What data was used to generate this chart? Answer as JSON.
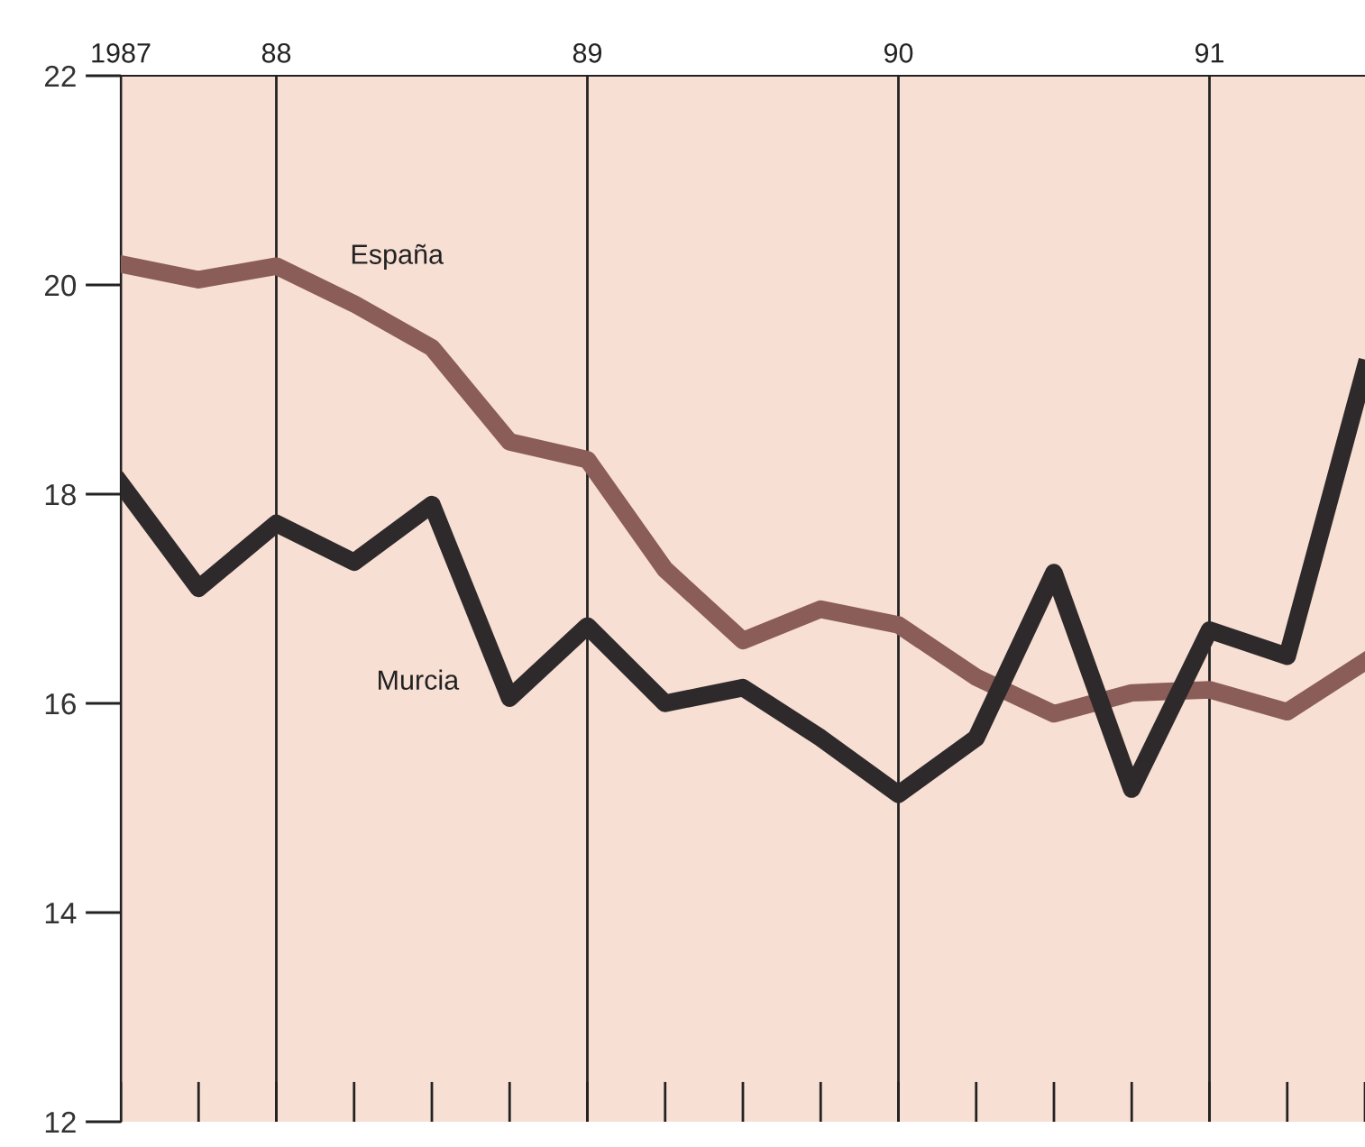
{
  "chart_data": {
    "type": "line",
    "categories": [
      "1987",
      null,
      "88",
      null,
      null,
      null,
      "89",
      null,
      null,
      null,
      "90",
      null,
      null,
      null,
      "91",
      null,
      null
    ],
    "series": [
      {
        "name": "España",
        "color": "#8a5d58",
        "values": [
          20.2,
          20.05,
          20.18,
          19.82,
          19.4,
          18.5,
          18.33,
          17.28,
          16.6,
          16.9,
          16.75,
          16.25,
          15.9,
          16.1,
          16.13,
          15.92,
          16.4
        ]
      },
      {
        "name": "Murcia",
        "color": "#2e2a2b",
        "values": [
          18.1,
          17.1,
          17.72,
          17.35,
          17.9,
          16.05,
          16.74,
          16.0,
          16.15,
          15.67,
          15.13,
          15.67,
          17.25,
          15.18,
          16.7,
          16.45,
          19.2
        ]
      }
    ],
    "ylim": [
      12,
      22
    ],
    "yticks": [
      12,
      14,
      16,
      18,
      20,
      22
    ],
    "grid": "x",
    "legend": false,
    "marker": "none",
    "line_style": "solid"
  }
}
